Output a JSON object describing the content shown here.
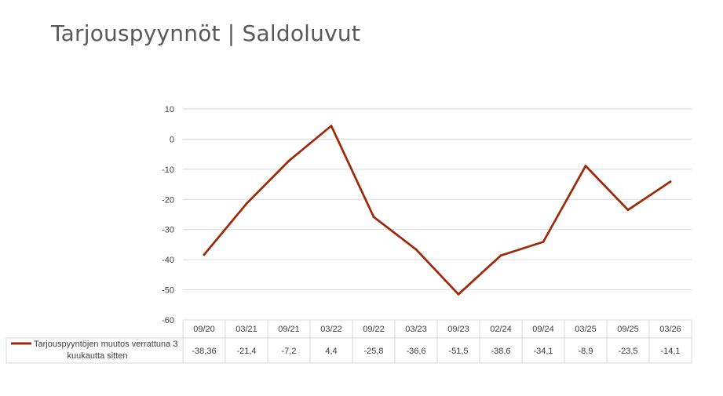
{
  "title": "Tarjouspyynnöt | Saldoluvut",
  "chart_data": {
    "type": "line",
    "categories": [
      "09/20",
      "03/21",
      "09/21",
      "03/22",
      "09/22",
      "03/23",
      "09/23",
      "02/24",
      "09/24",
      "03/25",
      "09/25",
      "03/26"
    ],
    "series": [
      {
        "name": "Tarjouspyyntöjen muutos verrattuna 3 kuukautta sitten",
        "name_lines": [
          "Tarjouspyyntöjen muutos verrattuna 3",
          "kuukautta sitten"
        ],
        "values": [
          -38.36,
          -21.4,
          -7.2,
          4.4,
          -25.8,
          -36.6,
          -51.5,
          -38.6,
          -34.1,
          -8.9,
          -23.5,
          -14.1
        ],
        "labels": [
          "-38,36",
          "-21,4",
          "-7,2",
          "4,4",
          "-25,8",
          "-36,6",
          "-51,5",
          "-38,6",
          "-34,1",
          "-8,9",
          "-23,5",
          "-14,1"
        ],
        "color": "#9e2a0b"
      }
    ],
    "yticks": [
      "10",
      "0",
      "-10",
      "-20",
      "-30",
      "-40",
      "-50",
      "-60"
    ],
    "ylim": [
      -60,
      10
    ],
    "grid": true,
    "legend": "data-table"
  }
}
